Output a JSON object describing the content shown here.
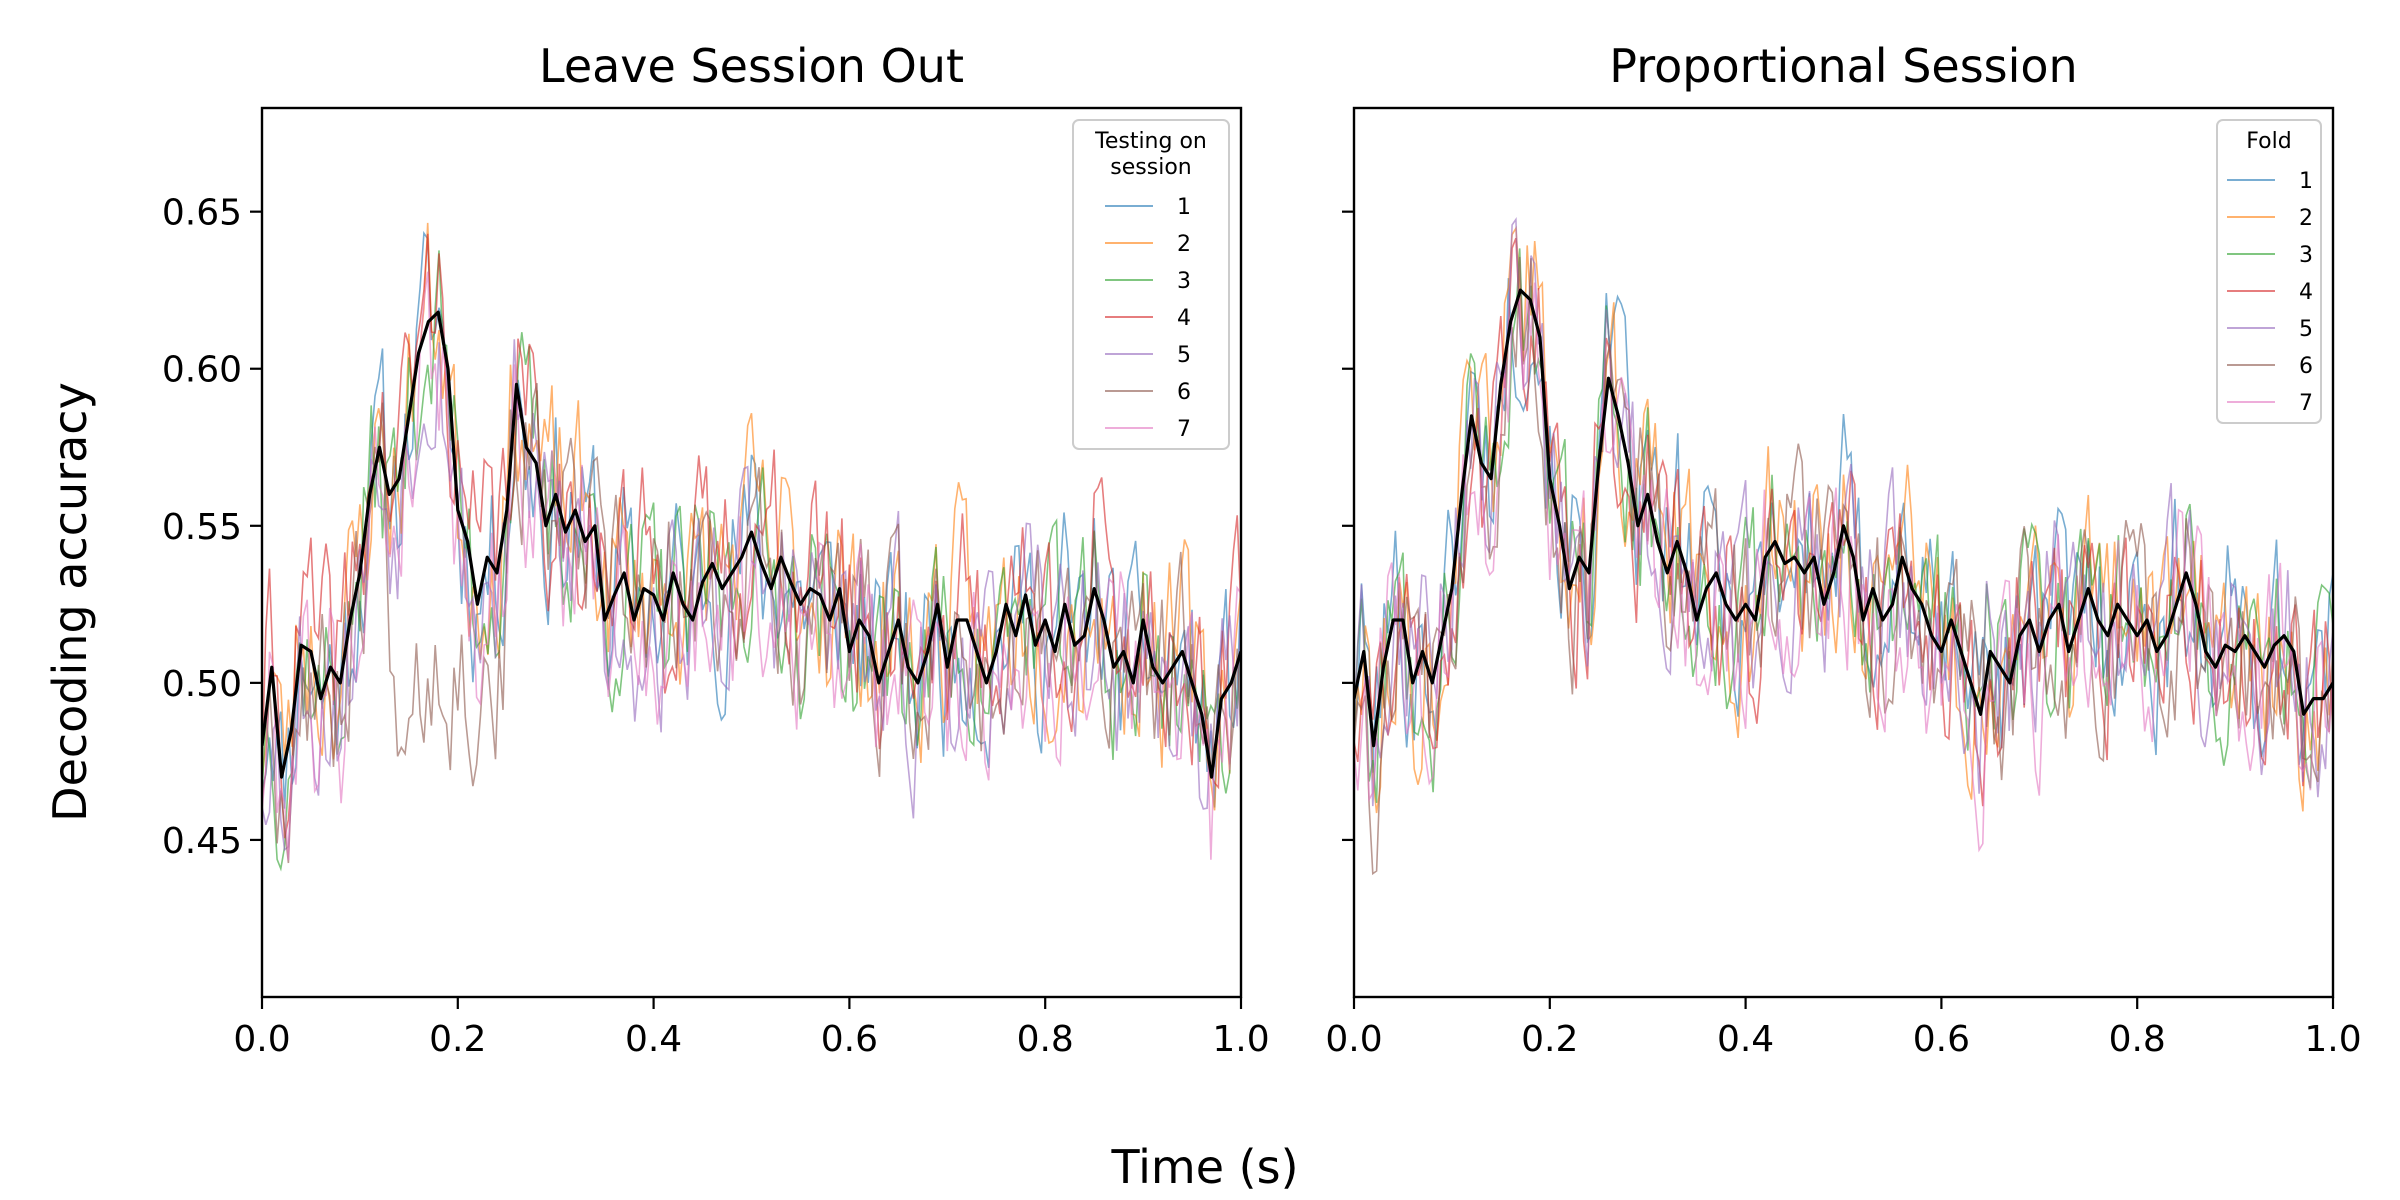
{
  "figure": {
    "xlabel": "Time (s)",
    "ylabel": "Decoding accuracy"
  },
  "chart_data": [
    {
      "type": "line",
      "title": "Leave Session Out",
      "xlim": [
        0.0,
        1.0
      ],
      "ylim": [
        0.4,
        0.683
      ],
      "xticks": [
        0.0,
        0.2,
        0.4,
        0.6,
        0.8,
        1.0
      ],
      "xtick_labels": [
        "0.0",
        "0.2",
        "0.4",
        "0.6",
        "0.8",
        "1.0"
      ],
      "yticks": [
        0.45,
        0.5,
        0.55,
        0.6,
        0.65
      ],
      "ytick_labels": [
        "0.45",
        "0.50",
        "0.55",
        "0.60",
        "0.65"
      ],
      "legend": {
        "title": "Testing on\n session",
        "position": "top-right"
      },
      "grid": false,
      "mean": {
        "color": "#000000",
        "points": [
          [
            0.0,
            0.48
          ],
          [
            0.01,
            0.505
          ],
          [
            0.02,
            0.47
          ],
          [
            0.03,
            0.485
          ],
          [
            0.04,
            0.512
          ],
          [
            0.05,
            0.51
          ],
          [
            0.06,
            0.495
          ],
          [
            0.07,
            0.505
          ],
          [
            0.08,
            0.5
          ],
          [
            0.09,
            0.52
          ],
          [
            0.1,
            0.535
          ],
          [
            0.11,
            0.56
          ],
          [
            0.12,
            0.575
          ],
          [
            0.13,
            0.56
          ],
          [
            0.14,
            0.565
          ],
          [
            0.15,
            0.585
          ],
          [
            0.16,
            0.605
          ],
          [
            0.17,
            0.615
          ],
          [
            0.18,
            0.618
          ],
          [
            0.19,
            0.6
          ],
          [
            0.2,
            0.555
          ],
          [
            0.21,
            0.545
          ],
          [
            0.22,
            0.525
          ],
          [
            0.23,
            0.54
          ],
          [
            0.24,
            0.535
          ],
          [
            0.25,
            0.555
          ],
          [
            0.26,
            0.595
          ],
          [
            0.27,
            0.575
          ],
          [
            0.28,
            0.57
          ],
          [
            0.29,
            0.55
          ],
          [
            0.3,
            0.56
          ],
          [
            0.31,
            0.548
          ],
          [
            0.32,
            0.555
          ],
          [
            0.33,
            0.545
          ],
          [
            0.34,
            0.55
          ],
          [
            0.35,
            0.52
          ],
          [
            0.36,
            0.528
          ],
          [
            0.37,
            0.535
          ],
          [
            0.38,
            0.52
          ],
          [
            0.39,
            0.53
          ],
          [
            0.4,
            0.528
          ],
          [
            0.41,
            0.52
          ],
          [
            0.42,
            0.535
          ],
          [
            0.43,
            0.525
          ],
          [
            0.44,
            0.52
          ],
          [
            0.45,
            0.532
          ],
          [
            0.46,
            0.538
          ],
          [
            0.47,
            0.53
          ],
          [
            0.48,
            0.535
          ],
          [
            0.49,
            0.54
          ],
          [
            0.5,
            0.548
          ],
          [
            0.51,
            0.538
          ],
          [
            0.52,
            0.53
          ],
          [
            0.53,
            0.54
          ],
          [
            0.54,
            0.532
          ],
          [
            0.55,
            0.525
          ],
          [
            0.56,
            0.53
          ],
          [
            0.57,
            0.528
          ],
          [
            0.58,
            0.52
          ],
          [
            0.59,
            0.53
          ],
          [
            0.6,
            0.51
          ],
          [
            0.61,
            0.52
          ],
          [
            0.62,
            0.515
          ],
          [
            0.63,
            0.5
          ],
          [
            0.64,
            0.51
          ],
          [
            0.65,
            0.52
          ],
          [
            0.66,
            0.505
          ],
          [
            0.67,
            0.5
          ],
          [
            0.68,
            0.51
          ],
          [
            0.69,
            0.525
          ],
          [
            0.7,
            0.505
          ],
          [
            0.71,
            0.52
          ],
          [
            0.72,
            0.52
          ],
          [
            0.73,
            0.51
          ],
          [
            0.74,
            0.5
          ],
          [
            0.75,
            0.51
          ],
          [
            0.76,
            0.525
          ],
          [
            0.77,
            0.515
          ],
          [
            0.78,
            0.528
          ],
          [
            0.79,
            0.512
          ],
          [
            0.8,
            0.52
          ],
          [
            0.81,
            0.51
          ],
          [
            0.82,
            0.525
          ],
          [
            0.83,
            0.512
          ],
          [
            0.84,
            0.515
          ],
          [
            0.85,
            0.53
          ],
          [
            0.86,
            0.52
          ],
          [
            0.87,
            0.505
          ],
          [
            0.88,
            0.51
          ],
          [
            0.89,
            0.5
          ],
          [
            0.9,
            0.52
          ],
          [
            0.91,
            0.505
          ],
          [
            0.92,
            0.5
          ],
          [
            0.93,
            0.505
          ],
          [
            0.94,
            0.51
          ],
          [
            0.95,
            0.5
          ],
          [
            0.96,
            0.49
          ],
          [
            0.97,
            0.47
          ],
          [
            0.98,
            0.495
          ],
          [
            0.99,
            0.5
          ],
          [
            1.0,
            0.51
          ]
        ]
      },
      "series": [
        {
          "name": "1",
          "color": "#1f77b4",
          "seed": 11,
          "offset": 0.0
        },
        {
          "name": "2",
          "color": "#ff7f0e",
          "seed": 23,
          "offset": 0.004
        },
        {
          "name": "3",
          "color": "#2ca02c",
          "seed": 37,
          "offset": -0.002
        },
        {
          "name": "4",
          "color": "#d62728",
          "seed": 41,
          "offset": 0.006
        },
        {
          "name": "5",
          "color": "#9467bd",
          "seed": 53,
          "offset": -0.006
        },
        {
          "name": "6",
          "color": "#8c564b",
          "seed": 67,
          "offset": -0.004,
          "flat_peak": true
        },
        {
          "name": "7",
          "color": "#e377c2",
          "seed": 79,
          "offset": -0.008
        }
      ]
    },
    {
      "type": "line",
      "title": "Proportional Session",
      "xlim": [
        0.0,
        1.0
      ],
      "ylim": [
        0.4,
        0.683
      ],
      "xticks": [
        0.0,
        0.2,
        0.4,
        0.6,
        0.8,
        1.0
      ],
      "xtick_labels": [
        "0.0",
        "0.2",
        "0.4",
        "0.6",
        "0.8",
        "1.0"
      ],
      "yticks": [
        0.45,
        0.5,
        0.55,
        0.6,
        0.65
      ],
      "ytick_labels": [
        "",
        "",
        "",
        "",
        ""
      ],
      "legend": {
        "title": "Fold",
        "position": "top-right"
      },
      "grid": false,
      "mean": {
        "color": "#000000",
        "points": [
          [
            0.0,
            0.495
          ],
          [
            0.01,
            0.51
          ],
          [
            0.02,
            0.48
          ],
          [
            0.03,
            0.505
          ],
          [
            0.04,
            0.52
          ],
          [
            0.05,
            0.52
          ],
          [
            0.06,
            0.5
          ],
          [
            0.07,
            0.51
          ],
          [
            0.08,
            0.5
          ],
          [
            0.09,
            0.515
          ],
          [
            0.1,
            0.53
          ],
          [
            0.11,
            0.56
          ],
          [
            0.12,
            0.585
          ],
          [
            0.13,
            0.57
          ],
          [
            0.14,
            0.565
          ],
          [
            0.15,
            0.595
          ],
          [
            0.16,
            0.615
          ],
          [
            0.17,
            0.625
          ],
          [
            0.18,
            0.622
          ],
          [
            0.19,
            0.61
          ],
          [
            0.2,
            0.565
          ],
          [
            0.21,
            0.55
          ],
          [
            0.22,
            0.53
          ],
          [
            0.23,
            0.54
          ],
          [
            0.24,
            0.535
          ],
          [
            0.25,
            0.57
          ],
          [
            0.26,
            0.597
          ],
          [
            0.27,
            0.585
          ],
          [
            0.28,
            0.57
          ],
          [
            0.29,
            0.55
          ],
          [
            0.3,
            0.56
          ],
          [
            0.31,
            0.545
          ],
          [
            0.32,
            0.535
          ],
          [
            0.33,
            0.545
          ],
          [
            0.34,
            0.535
          ],
          [
            0.35,
            0.52
          ],
          [
            0.36,
            0.53
          ],
          [
            0.37,
            0.535
          ],
          [
            0.38,
            0.525
          ],
          [
            0.39,
            0.52
          ],
          [
            0.4,
            0.525
          ],
          [
            0.41,
            0.52
          ],
          [
            0.42,
            0.54
          ],
          [
            0.43,
            0.545
          ],
          [
            0.44,
            0.538
          ],
          [
            0.45,
            0.54
          ],
          [
            0.46,
            0.535
          ],
          [
            0.47,
            0.54
          ],
          [
            0.48,
            0.525
          ],
          [
            0.49,
            0.535
          ],
          [
            0.5,
            0.55
          ],
          [
            0.51,
            0.54
          ],
          [
            0.52,
            0.52
          ],
          [
            0.53,
            0.53
          ],
          [
            0.54,
            0.52
          ],
          [
            0.55,
            0.525
          ],
          [
            0.56,
            0.54
          ],
          [
            0.57,
            0.53
          ],
          [
            0.58,
            0.525
          ],
          [
            0.59,
            0.515
          ],
          [
            0.6,
            0.51
          ],
          [
            0.61,
            0.52
          ],
          [
            0.62,
            0.51
          ],
          [
            0.63,
            0.5
          ],
          [
            0.64,
            0.49
          ],
          [
            0.65,
            0.51
          ],
          [
            0.66,
            0.505
          ],
          [
            0.67,
            0.5
          ],
          [
            0.68,
            0.515
          ],
          [
            0.69,
            0.52
          ],
          [
            0.7,
            0.51
          ],
          [
            0.71,
            0.52
          ],
          [
            0.72,
            0.525
          ],
          [
            0.73,
            0.51
          ],
          [
            0.74,
            0.52
          ],
          [
            0.75,
            0.53
          ],
          [
            0.76,
            0.52
          ],
          [
            0.77,
            0.515
          ],
          [
            0.78,
            0.525
          ],
          [
            0.79,
            0.52
          ],
          [
            0.8,
            0.515
          ],
          [
            0.81,
            0.52
          ],
          [
            0.82,
            0.51
          ],
          [
            0.83,
            0.515
          ],
          [
            0.84,
            0.525
          ],
          [
            0.85,
            0.535
          ],
          [
            0.86,
            0.525
          ],
          [
            0.87,
            0.51
          ],
          [
            0.88,
            0.505
          ],
          [
            0.89,
            0.512
          ],
          [
            0.9,
            0.51
          ],
          [
            0.91,
            0.515
          ],
          [
            0.92,
            0.51
          ],
          [
            0.93,
            0.505
          ],
          [
            0.94,
            0.512
          ],
          [
            0.95,
            0.515
          ],
          [
            0.96,
            0.51
          ],
          [
            0.97,
            0.49
          ],
          [
            0.98,
            0.495
          ],
          [
            0.99,
            0.495
          ],
          [
            1.0,
            0.5
          ]
        ]
      },
      "series": [
        {
          "name": "1",
          "color": "#1f77b4",
          "seed": 101,
          "offset": 0.003
        },
        {
          "name": "2",
          "color": "#ff7f0e",
          "seed": 113,
          "offset": 0.002
        },
        {
          "name": "3",
          "color": "#2ca02c",
          "seed": 127,
          "offset": 0.0
        },
        {
          "name": "4",
          "color": "#d62728",
          "seed": 131,
          "offset": -0.002
        },
        {
          "name": "5",
          "color": "#9467bd",
          "seed": 149,
          "offset": 0.001
        },
        {
          "name": "6",
          "color": "#8c564b",
          "seed": 157,
          "offset": -0.003
        },
        {
          "name": "7",
          "color": "#e377c2",
          "seed": 163,
          "offset": -0.006
        }
      ]
    }
  ]
}
